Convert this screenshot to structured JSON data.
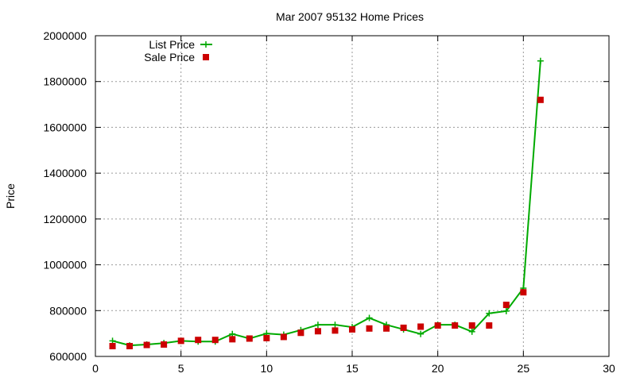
{
  "chart_data": {
    "type": "line",
    "title": "Mar 2007 95132 Home Prices",
    "xlabel": "",
    "ylabel": "Price",
    "xlim": [
      0,
      30
    ],
    "ylim": [
      600000,
      2000000
    ],
    "x_ticks": [
      0,
      5,
      10,
      15,
      20,
      25,
      30
    ],
    "y_ticks": [
      600000,
      800000,
      1000000,
      1200000,
      1400000,
      1600000,
      1800000,
      2000000
    ],
    "grid": true,
    "legend_position": "top-left",
    "series": [
      {
        "name": "List Price",
        "style": "line+cross",
        "color": "#00aa00",
        "x": [
          1,
          2,
          3,
          4,
          5,
          6,
          7,
          8,
          9,
          10,
          11,
          12,
          13,
          14,
          15,
          16,
          17,
          18,
          19,
          20,
          21,
          22,
          23,
          24,
          25,
          26
        ],
        "y": [
          668000,
          648000,
          652000,
          658000,
          668000,
          665000,
          665000,
          698000,
          678000,
          700000,
          695000,
          715000,
          738000,
          738000,
          728000,
          768000,
          738000,
          718000,
          698000,
          738000,
          738000,
          708000,
          788000,
          798000,
          898000,
          1890000
        ]
      },
      {
        "name": "Sale Price",
        "style": "square",
        "color": "#cc0000",
        "x": [
          1,
          2,
          3,
          4,
          5,
          6,
          7,
          8,
          9,
          10,
          11,
          12,
          13,
          14,
          15,
          16,
          17,
          18,
          19,
          20,
          21,
          22,
          23,
          24,
          25,
          26
        ],
        "y": [
          645000,
          645000,
          650000,
          652000,
          668000,
          672000,
          672000,
          675000,
          678000,
          680000,
          685000,
          703000,
          710000,
          713000,
          718000,
          722000,
          722000,
          725000,
          730000,
          735000,
          735000,
          735000,
          735000,
          825000,
          880000,
          1720000
        ]
      }
    ]
  }
}
